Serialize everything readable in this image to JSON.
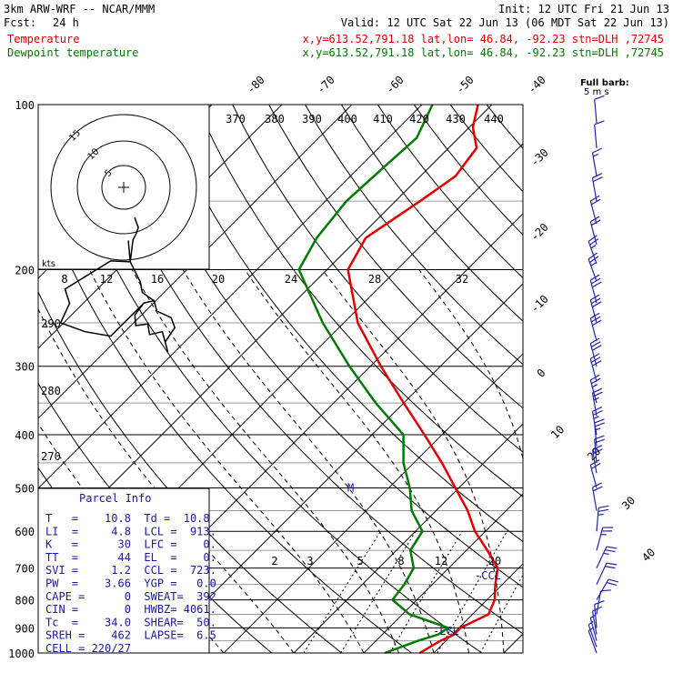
{
  "header": {
    "model": "3km ARW-WRF -- NCAR/MMM",
    "init": "Init: 12 UTC Fri 21 Jun 13",
    "fcst_label": "Fcst:",
    "fcst_hours": "24 h",
    "valid": "Valid: 12 UTC Sat 22 Jun 13 (06 MDT Sat 22 Jun 13)",
    "temperature_label": "Temperature",
    "dewpoint_label": "Dewpoint temperature",
    "location_info": "x,y=613.52,791.18   lat,lon= 46.84, -92.23  stn=DLH ,72745",
    "colors": {
      "temperature": "#e00000",
      "dewpoint": "#007a00",
      "text": "#000000",
      "parcel_text": "#1a1a9a",
      "wind": "#2222aa"
    }
  },
  "chart_data": {
    "type": "line",
    "pressure_ticks": [
      "100",
      "200",
      "300",
      "400",
      "500",
      "600",
      "700",
      "800",
      "900",
      "1000"
    ],
    "pressure_levels": [
      100,
      200,
      300,
      400,
      500,
      600,
      700,
      800,
      900,
      1000
    ],
    "ylim": [
      1000,
      100
    ],
    "skewed_temp_labels": [
      "-80",
      "-70",
      "-60",
      "-50",
      "-40",
      "-30",
      "-20",
      "-10",
      "0",
      "10",
      "20",
      "30",
      "40"
    ],
    "theta_labels": [
      "370",
      "380",
      "390",
      "400",
      "410",
      "420",
      "430",
      "440",
      "290",
      "280",
      "270"
    ],
    "mixing_ratio_labels": [
      "2",
      "3",
      "5",
      "8",
      "12",
      "20"
    ],
    "hodograph": {
      "units_label": "kts",
      "ring_labels": [
        "5",
        "10",
        "15"
      ],
      "speed_labels": [
        "8",
        "12",
        "16",
        "20",
        "24",
        "28",
        "32"
      ]
    },
    "series": [
      {
        "name": "Temperature",
        "points": [
          [
            1000,
            8.0
          ],
          [
            950,
            9.2
          ],
          [
            925,
            10.3
          ],
          [
            900,
            10.2
          ],
          [
            850,
            12.3
          ],
          [
            800,
            11.1
          ],
          [
            750,
            9.0
          ],
          [
            700,
            7.0
          ],
          [
            650,
            3.0
          ],
          [
            600,
            -1.5
          ],
          [
            550,
            -5.5
          ],
          [
            500,
            -10.5
          ],
          [
            450,
            -16.0
          ],
          [
            400,
            -22.5
          ],
          [
            350,
            -30.0
          ],
          [
            300,
            -38.5
          ],
          [
            250,
            -48.0
          ],
          [
            200,
            -57.0
          ],
          [
            175,
            -59.0
          ],
          [
            150,
            -56.5
          ],
          [
            135,
            -55.0
          ],
          [
            120,
            -56.0
          ],
          [
            110,
            -59.5
          ],
          [
            100,
            -62.0
          ]
        ]
      },
      {
        "name": "Dewpoint temperature",
        "points": [
          [
            1000,
            3.0
          ],
          [
            950,
            6.0
          ],
          [
            925,
            8.0
          ],
          [
            900,
            8.5
          ],
          [
            850,
            1.0
          ],
          [
            800,
            -3.5
          ],
          [
            750,
            -4.0
          ],
          [
            700,
            -5.0
          ],
          [
            650,
            -8.0
          ],
          [
            600,
            -9.0
          ],
          [
            550,
            -13.5
          ],
          [
            500,
            -17.0
          ],
          [
            450,
            -21.5
          ],
          [
            400,
            -25.5
          ],
          [
            350,
            -34.0
          ],
          [
            300,
            -43.0
          ],
          [
            250,
            -53.0
          ],
          [
            200,
            -64.0
          ],
          [
            175,
            -66.0
          ],
          [
            150,
            -67.0
          ],
          [
            130,
            -66.5
          ],
          [
            115,
            -66.0
          ],
          [
            100,
            -68.5
          ]
        ]
      }
    ],
    "markers": [
      {
        "label": "M",
        "p": 500
      },
      {
        "label": "-LCL",
        "p": 913
      },
      {
        "label": "-CCL",
        "p": 723
      }
    ]
  },
  "wind_profile": {
    "scale_label": "Full barb:",
    "scale_units": "5 m s",
    "barbs": [
      {
        "p": 1000,
        "kts": 6,
        "dir": 340
      },
      {
        "p": 975,
        "kts": 8,
        "dir": 340
      },
      {
        "p": 950,
        "kts": 9,
        "dir": 345
      },
      {
        "p": 925,
        "kts": 10,
        "dir": 350
      },
      {
        "p": 900,
        "kts": 14,
        "dir": 355
      },
      {
        "p": 850,
        "kts": 14,
        "dir": 10
      },
      {
        "p": 800,
        "kts": 22,
        "dir": 30
      },
      {
        "p": 750,
        "kts": 24,
        "dir": 25
      },
      {
        "p": 700,
        "kts": 28,
        "dir": 25
      },
      {
        "p": 650,
        "kts": 28,
        "dir": 15
      },
      {
        "p": 600,
        "kts": 28,
        "dir": 5
      },
      {
        "p": 550,
        "kts": 22,
        "dir": 350
      },
      {
        "p": 500,
        "kts": 22,
        "dir": 345
      },
      {
        "p": 470,
        "kts": 22,
        "dir": 350
      },
      {
        "p": 450,
        "kts": 24,
        "dir": 355
      },
      {
        "p": 420,
        "kts": 26,
        "dir": 355
      },
      {
        "p": 400,
        "kts": 26,
        "dir": 350
      },
      {
        "p": 370,
        "kts": 28,
        "dir": 350
      },
      {
        "p": 350,
        "kts": 28,
        "dir": 345
      },
      {
        "p": 320,
        "kts": 30,
        "dir": 345
      },
      {
        "p": 300,
        "kts": 30,
        "dir": 345
      },
      {
        "p": 270,
        "kts": 32,
        "dir": 345
      },
      {
        "p": 250,
        "kts": 32,
        "dir": 345
      },
      {
        "p": 230,
        "kts": 30,
        "dir": 345
      },
      {
        "p": 210,
        "kts": 28,
        "dir": 340
      },
      {
        "p": 195,
        "kts": 26,
        "dir": 340
      },
      {
        "p": 180,
        "kts": 24,
        "dir": 345
      },
      {
        "p": 165,
        "kts": 22,
        "dir": 345
      },
      {
        "p": 150,
        "kts": 20,
        "dir": 350
      },
      {
        "p": 135,
        "kts": 18,
        "dir": 350
      },
      {
        "p": 120,
        "kts": 14,
        "dir": 355
      },
      {
        "p": 108,
        "kts": 10,
        "dir": 355
      }
    ]
  },
  "parcel_info": {
    "title": "Parcel Info",
    "rows": [
      "T   =    10.8  Td =  10.8",
      "LI  =     4.8  LCL =  913.",
      "K   =      30  LFC =    0.",
      "TT  =      44  EL  =    0.",
      "SVI =     1.2  CCL =  723.",
      "PW  =    3.66  YGP =   0.0",
      "CAPE =      0  SWEAT=  392",
      "CIN =       0  HWBZ= 4061.",
      "Tc  =    34.0  SHEAR=  50.",
      "SREH =    462  LAPSE=  6.5",
      "CELL = 220/27"
    ]
  }
}
